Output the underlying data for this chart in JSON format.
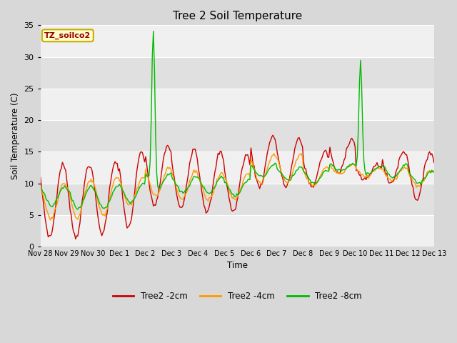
{
  "title": "Tree 2 Soil Temperature",
  "ylabel": "Soil Temperature (C)",
  "xlabel": "Time",
  "xlim_labels": [
    "Nov 28",
    "Nov 29",
    "Nov 30",
    "Dec 1",
    "Dec 2",
    "Dec 3",
    "Dec 4",
    "Dec 5",
    "Dec 6",
    "Dec 7",
    "Dec 8",
    "Dec 9",
    "Dec 10",
    "Dec 11",
    "Dec 12",
    "Dec 13"
  ],
  "ylim": [
    0,
    35
  ],
  "yticks": [
    0,
    5,
    10,
    15,
    20,
    25,
    30,
    35
  ],
  "series_labels": [
    "Tree2 -2cm",
    "Tree2 -4cm",
    "Tree2 -8cm"
  ],
  "series_colors": [
    "#cc0000",
    "#ff9900",
    "#00bb00"
  ],
  "line_width": 1.0,
  "title_fontsize": 11,
  "annotation_text": "TZ_soilco2",
  "annotation_color": "#990000",
  "annotation_bg": "#ffffcc",
  "annotation_edge": "#ccaa00"
}
